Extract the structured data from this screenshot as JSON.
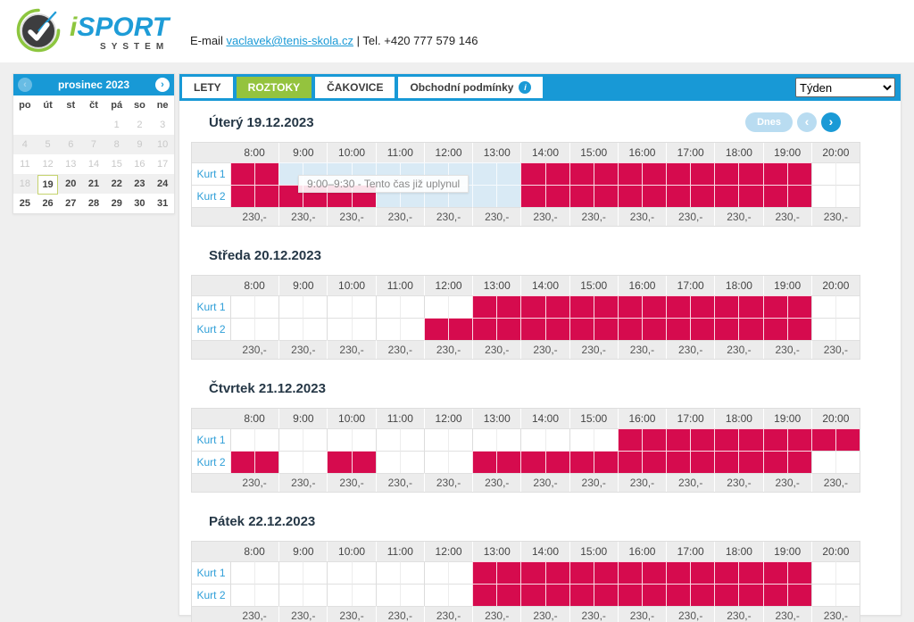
{
  "header": {
    "brand_i": "i",
    "brand_rest": "SPORT",
    "brand_sub": "SYSTEM",
    "contact": {
      "email_label": "E-mail",
      "email": "vaclavek@tenis-skola.cz",
      "separator": "|",
      "phone": "Tel. +420 777 579 146"
    }
  },
  "calendar": {
    "month_title": "prosinec 2023",
    "prev_arrow": "‹",
    "next_arrow": "›",
    "weekdays": [
      "po",
      "út",
      "st",
      "čt",
      "pá",
      "so",
      "ne"
    ],
    "weeks": [
      [
        {
          "d": "",
          "state": "empty"
        },
        {
          "d": "",
          "state": "empty"
        },
        {
          "d": "",
          "state": "empty"
        },
        {
          "d": "",
          "state": "empty"
        },
        {
          "d": "1",
          "state": "muted"
        },
        {
          "d": "2",
          "state": "muted"
        },
        {
          "d": "3",
          "state": "muted"
        }
      ],
      [
        {
          "d": "4",
          "state": "muted"
        },
        {
          "d": "5",
          "state": "muted"
        },
        {
          "d": "6",
          "state": "muted"
        },
        {
          "d": "7",
          "state": "muted"
        },
        {
          "d": "8",
          "state": "muted"
        },
        {
          "d": "9",
          "state": "muted"
        },
        {
          "d": "10",
          "state": "muted"
        }
      ],
      [
        {
          "d": "11",
          "state": "muted"
        },
        {
          "d": "12",
          "state": "muted"
        },
        {
          "d": "13",
          "state": "muted"
        },
        {
          "d": "14",
          "state": "muted"
        },
        {
          "d": "15",
          "state": "muted"
        },
        {
          "d": "16",
          "state": "muted"
        },
        {
          "d": "17",
          "state": "muted"
        }
      ],
      [
        {
          "d": "18",
          "state": "muted"
        },
        {
          "d": "19",
          "state": "selected"
        },
        {
          "d": "20",
          "state": "normal"
        },
        {
          "d": "21",
          "state": "normal"
        },
        {
          "d": "22",
          "state": "normal"
        },
        {
          "d": "23",
          "state": "normal"
        },
        {
          "d": "24",
          "state": "normal"
        }
      ],
      [
        {
          "d": "25",
          "state": "normal"
        },
        {
          "d": "26",
          "state": "normal"
        },
        {
          "d": "27",
          "state": "normal"
        },
        {
          "d": "28",
          "state": "normal"
        },
        {
          "d": "29",
          "state": "normal"
        },
        {
          "d": "30",
          "state": "normal"
        },
        {
          "d": "31",
          "state": "normal"
        }
      ]
    ]
  },
  "tabs": [
    {
      "label": "LETY",
      "active": false,
      "info": false
    },
    {
      "label": "ROZTOKY",
      "active": true,
      "info": false
    },
    {
      "label": "ČAKOVICE",
      "active": false,
      "info": false
    },
    {
      "label": "Obchodní podmínky",
      "active": false,
      "info": true
    }
  ],
  "view_select": {
    "value": "Týden",
    "options": [
      "Týden"
    ]
  },
  "nav": {
    "today_label": "Dnes",
    "prev_arrow": "‹",
    "next_arrow": "›"
  },
  "schedule": {
    "times": [
      "8:00",
      "9:00",
      "10:00",
      "11:00",
      "12:00",
      "13:00",
      "14:00",
      "15:00",
      "16:00",
      "17:00",
      "18:00",
      "19:00",
      "20:00"
    ],
    "day_start_hour": 8,
    "day_end_hour": 21,
    "price": "230,-",
    "days": [
      {
        "title": "Úterý 19.12.2023",
        "show_nav": true,
        "tooltip": "9:00–9:30 - Tento čas již uplynul",
        "courts": [
          {
            "name": "Kurt 1",
            "booked": [
              [
                8,
                9
              ],
              [
                14,
                20
              ]
            ],
            "past": [
              [
                9,
                14
              ]
            ]
          },
          {
            "name": "Kurt 2",
            "booked": [
              [
                8,
                11
              ],
              [
                14,
                20
              ]
            ],
            "past": [
              [
                11,
                14
              ]
            ]
          }
        ]
      },
      {
        "title": "Středa 20.12.2023",
        "show_nav": false,
        "courts": [
          {
            "name": "Kurt 1",
            "booked": [
              [
                13,
                20
              ]
            ],
            "past": []
          },
          {
            "name": "Kurt 2",
            "booked": [
              [
                12,
                20
              ]
            ],
            "past": []
          }
        ]
      },
      {
        "title": "Čtvrtek 21.12.2023",
        "show_nav": false,
        "courts": [
          {
            "name": "Kurt 1",
            "booked": [
              [
                16,
                21
              ]
            ],
            "past": []
          },
          {
            "name": "Kurt 2",
            "booked": [
              [
                8,
                9
              ],
              [
                10,
                11
              ],
              [
                13,
                20
              ]
            ],
            "past": []
          }
        ]
      },
      {
        "title": "Pátek 22.12.2023",
        "show_nav": false,
        "courts": [
          {
            "name": "Kurt 1",
            "booked": [
              [
                13,
                20
              ]
            ],
            "past": []
          },
          {
            "name": "Kurt 2",
            "booked": [
              [
                13,
                20
              ]
            ],
            "past": []
          }
        ]
      }
    ]
  },
  "colors": {
    "accent_blue": "#1899d6",
    "active_green": "#94c33e",
    "booked_red": "#d60b4e",
    "past_blue": "#d9eaf5"
  }
}
